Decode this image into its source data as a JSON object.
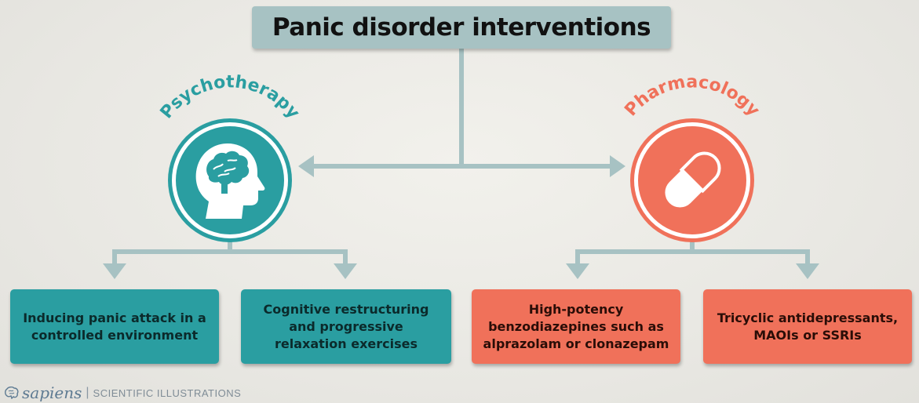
{
  "title": "Panic disorder interventions",
  "branches": [
    {
      "label": "Psychotherapy",
      "icon": "head-brain-icon",
      "color": "#2a9ea1"
    },
    {
      "label": "Pharmacology",
      "icon": "pill-capsule-icon",
      "color": "#f0715a"
    }
  ],
  "interventions": [
    {
      "text": "Inducing panic attack in a controlled environment",
      "branch": "Psychotherapy"
    },
    {
      "text": "Cognitive restructuring and progressive relaxation exercises",
      "branch": "Psychotherapy"
    },
    {
      "text": "High-potency benzodiazepines such as alprazolam or clonazepam",
      "branch": "Pharmacology"
    },
    {
      "text": "Tricyclic antidepressants, MAOIs or SSRIs",
      "branch": "Pharmacology"
    }
  ],
  "footer": {
    "brand": "sapiens",
    "separator": "|",
    "tagline": "SCIENTIFIC ILLUSTRATIONS",
    "icon": "brain-logo-icon"
  },
  "colors": {
    "connector": "#a7c2c3",
    "title_bg": "#a7c2c3",
    "teal": "#2a9ea1",
    "coral": "#f0715a",
    "background": "#ebeae5"
  }
}
